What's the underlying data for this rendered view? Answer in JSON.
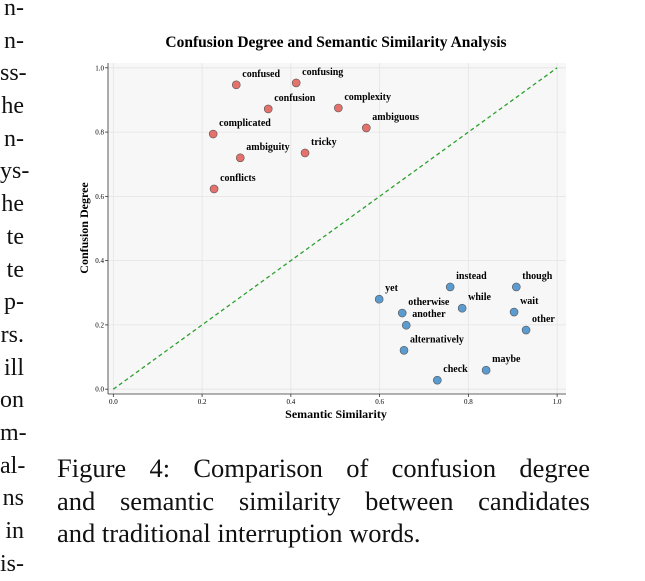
{
  "left_column": [
    "n-",
    "n-",
    "ss-",
    "he",
    "n-",
    "ys-",
    "he",
    "te",
    "te",
    "p-",
    "rs.",
    "ill",
    "on",
    "m-",
    "al-",
    "ns",
    "in",
    "is-"
  ],
  "chart_data": {
    "type": "scatter",
    "title": "Confusion Degree and Semantic Similarity Analysis",
    "x_label": "Semantic Similarity",
    "y_label": "Confusion Degree",
    "xlim": [
      -0.012,
      1.02
    ],
    "ylim": [
      -0.015,
      1.015
    ],
    "xticks": [
      {
        "value": 0,
        "label": "0.0"
      },
      {
        "value": 0.2,
        "label": "0.2"
      },
      {
        "value": 0.4,
        "label": "0.4"
      },
      {
        "value": 0.6,
        "label": "0.6"
      },
      {
        "value": 0.8,
        "label": "0.8"
      },
      {
        "value": 1,
        "label": "1.0"
      }
    ],
    "yticks": [
      {
        "value": 0,
        "label": "0.0"
      },
      {
        "value": 0.2,
        "label": "0.2"
      },
      {
        "value": 0.4,
        "label": "0.4"
      },
      {
        "value": 0.6,
        "label": "0.6"
      },
      {
        "value": 0.8,
        "label": "0.8"
      },
      {
        "value": 1,
        "label": "1.0"
      }
    ],
    "grid": true,
    "reference_line": {
      "x": [
        0,
        1
      ],
      "y": [
        0,
        1
      ],
      "color": "#2ca02c",
      "dashed": true
    },
    "series": [
      {
        "color": "#e4716b",
        "labels": [
          "confused",
          "confusing",
          "confusion",
          "complexity",
          "ambiguous",
          "complicated",
          "tricky",
          "ambiguity",
          "conflicts"
        ],
        "x": [
          0.277,
          0.412,
          0.349,
          0.507,
          0.57,
          0.225,
          0.432,
          0.286,
          0.227
        ],
        "y": [
          0.947,
          0.953,
          0.872,
          0.875,
          0.813,
          0.794,
          0.735,
          0.72,
          0.623
        ]
      },
      {
        "color": "#5b9bd0",
        "labels": [
          "instead",
          "though",
          "yet",
          "otherwise",
          "while",
          "wait",
          "another",
          "other",
          "alternatively",
          "check",
          "maybe"
        ],
        "x": [
          0.759,
          0.908,
          0.599,
          0.651,
          0.786,
          0.903,
          0.66,
          0.93,
          0.655,
          0.73,
          0.84
        ],
        "y": [
          0.318,
          0.318,
          0.28,
          0.237,
          0.252,
          0.24,
          0.199,
          0.184,
          0.121,
          0.028,
          0.059
        ]
      }
    ]
  },
  "caption": [
    "Figure 4:  Comparison of confusion degree",
    "and semantic similarity between candidates",
    "and traditional interruption words."
  ]
}
